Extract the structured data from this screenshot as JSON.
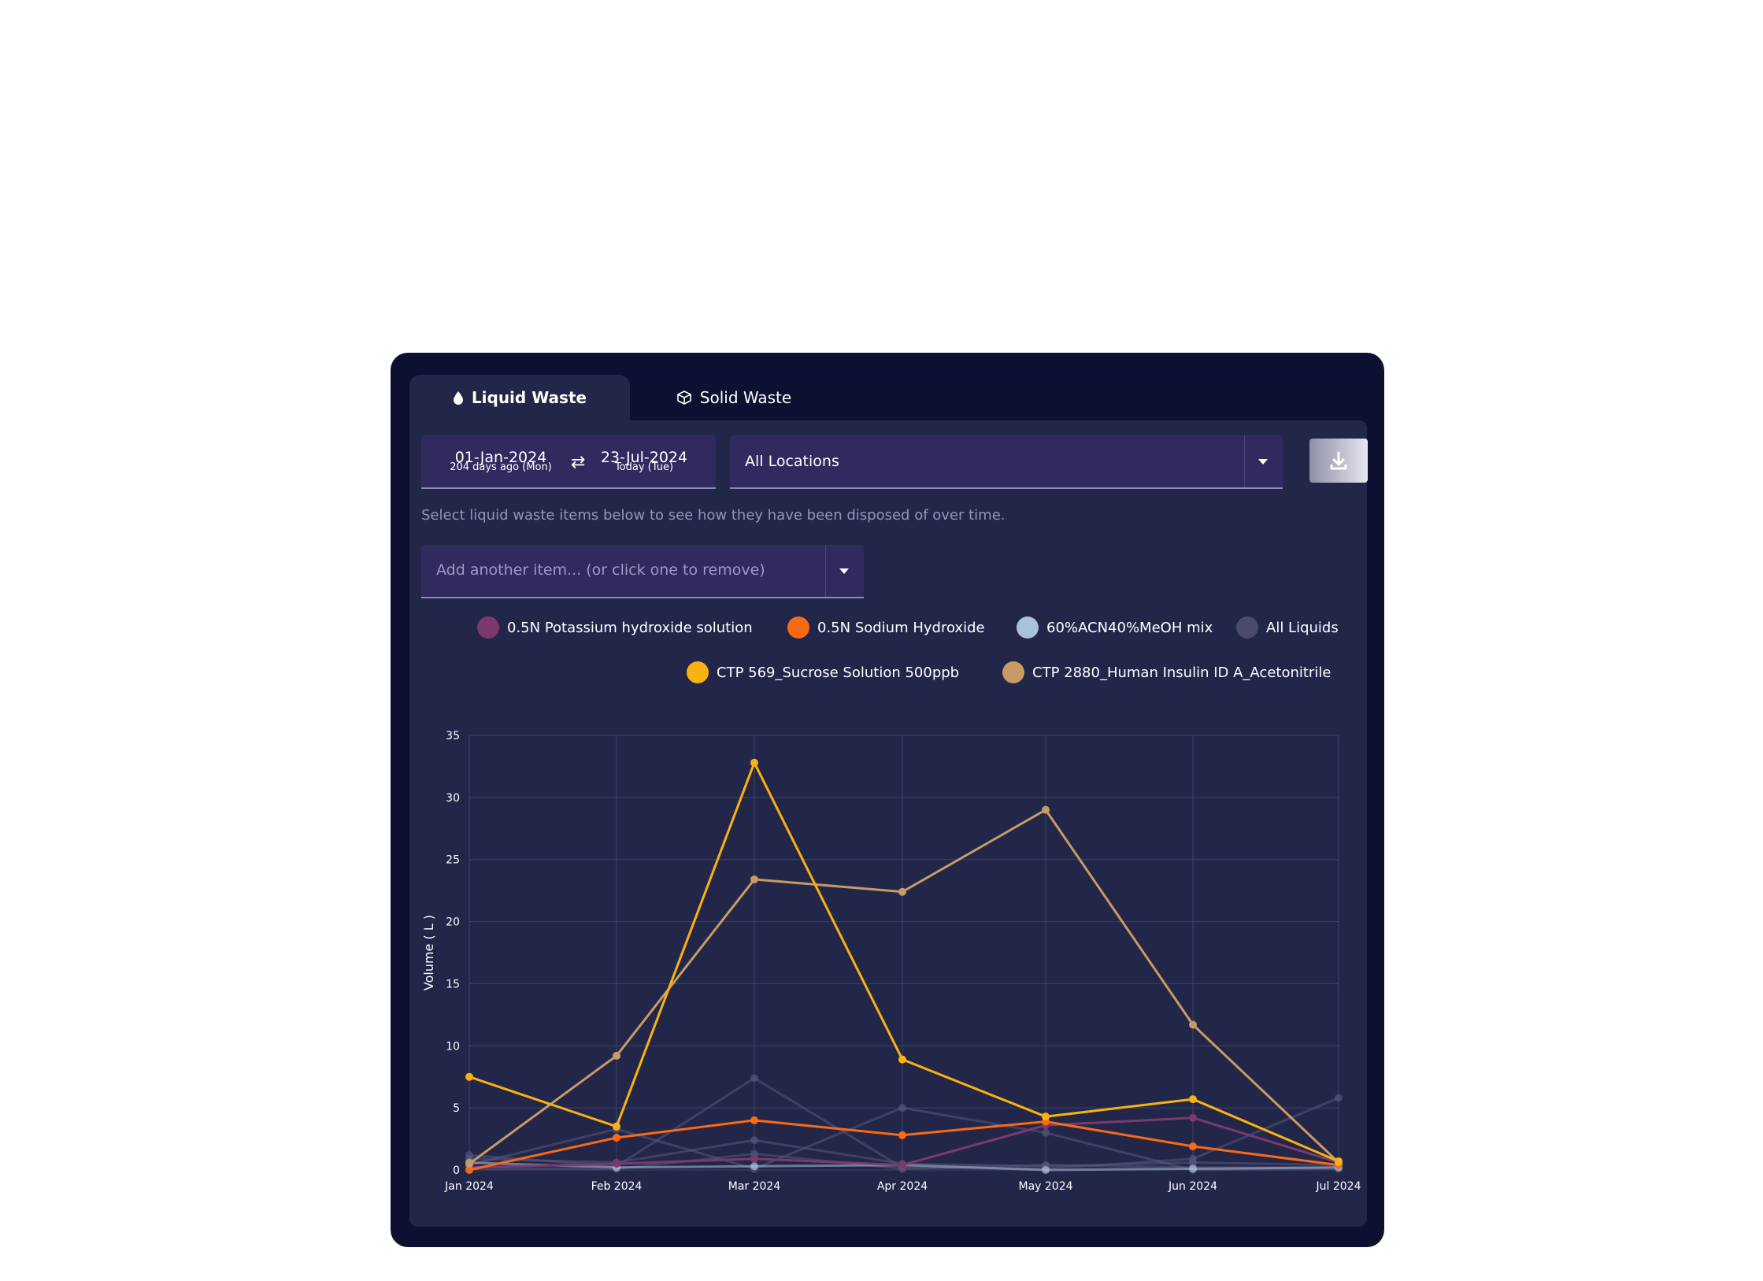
{
  "tabs": [
    {
      "label": "Liquid Waste",
      "icon": "droplet-icon",
      "active": true
    },
    {
      "label": "Solid Waste",
      "icon": "box-icon",
      "active": false
    }
  ],
  "date_range": {
    "start": "01-Jan-2024",
    "start_sub": "204 days ago (Mon)",
    "end": "23-Jul-2024",
    "end_sub": "Today (Tue)"
  },
  "location_select": {
    "value": "All Locations"
  },
  "download_button": {
    "icon": "download-icon"
  },
  "hint": "Select liquid waste items below to see how they have been disposed of over time.",
  "item_select": {
    "placeholder": "Add another item... (or click one to remove)"
  },
  "legend": [
    {
      "label": "0.5N Potassium hydroxide solution",
      "color": "#7a3a6e"
    },
    {
      "label": "0.5N Sodium Hydroxide",
      "color": "#f76b15"
    },
    {
      "label": "60%ACN40%MeOH mix",
      "color": "#a9c1dc"
    },
    {
      "label": "All Liquids",
      "color": "#4a4a6e"
    },
    {
      "label": "CTP 569_Sucrose Solution 500ppb",
      "color": "#f9b210"
    },
    {
      "label": "CTP 2880_Human Insulin ID A_Acetonitrile",
      "color": "#c89a64"
    }
  ],
  "chart_data": {
    "type": "line",
    "ylabel": "Volume ( L )",
    "xlabel": "",
    "ylim": [
      0,
      35
    ],
    "yticks": [
      "0",
      "5",
      "10",
      "15",
      "20",
      "25",
      "30",
      "35"
    ],
    "categories": [
      "Jan 2024",
      "Feb 2024",
      "Mar 2024",
      "Apr 2024",
      "May 2024",
      "Jun 2024",
      "Jul 2024"
    ],
    "grid": true,
    "series": [
      {
        "name": "CTP 569_Sucrose Solution 500ppb",
        "color": "#f9b210",
        "values": [
          7.5,
          3.5,
          32.8,
          8.9,
          4.3,
          5.7,
          0.7
        ]
      },
      {
        "name": "CTP 2880_Human Insulin ID A_Acetonitrile",
        "color": "#c89a64",
        "values": [
          0.5,
          9.2,
          23.4,
          22.4,
          29.0,
          11.7,
          0.6
        ]
      },
      {
        "name": "0.5N Sodium Hydroxide",
        "color": "#f76b15",
        "values": [
          0.0,
          2.6,
          4.0,
          2.8,
          3.9,
          1.9,
          0.4
        ]
      },
      {
        "name": "0.5N Potassium hydroxide solution",
        "color": "#7a3a6e",
        "values": [
          0.2,
          0.5,
          0.9,
          0.4,
          3.6,
          4.2,
          0.6
        ]
      },
      {
        "name": "60%ACN40%MeOH mix",
        "color": "#a9c1dc",
        "values": [
          0.6,
          0.2,
          0.3,
          0.4,
          0.0,
          0.1,
          0.2
        ]
      },
      {
        "name": "All Liquids",
        "color": "#55557a",
        "values": [
          1.2,
          0.3,
          7.4,
          0.2,
          0.1,
          0.9,
          5.8
        ]
      },
      {
        "name": "All Liquids",
        "color": "#55557a",
        "values": [
          0.4,
          3.3,
          0.1,
          5.0,
          3.0,
          0.0,
          0.1
        ]
      },
      {
        "name": "All Liquids",
        "color": "#55557a",
        "values": [
          0.9,
          0.6,
          2.4,
          0.5,
          0.3,
          0.6,
          0.4
        ]
      },
      {
        "name": "All Liquids",
        "color": "#55557a",
        "values": [
          0.1,
          0.1,
          1.3,
          0.1,
          0.4,
          0.2,
          0.2
        ]
      }
    ]
  }
}
